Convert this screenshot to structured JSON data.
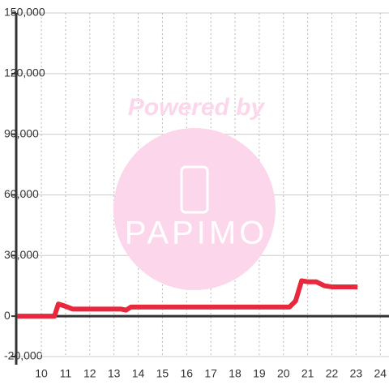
{
  "chart_data": {
    "type": "line",
    "watermark": {
      "top": "Powered by",
      "logo": "PAPIMO"
    },
    "x": [
      9,
      10.54,
      10.7,
      10.97,
      11.3,
      13.3,
      13.5,
      13.7,
      20.25,
      20.5,
      20.75,
      21,
      21.35,
      21.7,
      22,
      23.06
    ],
    "series": [
      {
        "color": "#e8283c",
        "values": [
          0,
          0,
          6000,
          5000,
          3500,
          3500,
          3000,
          4500,
          4500,
          7500,
          17500,
          17000,
          17000,
          15000,
          14500,
          14500
        ]
      }
    ],
    "xlim": [
      8.96,
      24.36
    ],
    "xticks": [
      10,
      11,
      12,
      13,
      14,
      15,
      16,
      17,
      18,
      19,
      20,
      21,
      22,
      23,
      24
    ],
    "ylim": [
      -20000,
      150000
    ],
    "yticks": [
      {
        "value": -20000,
        "label": "-20,000"
      },
      0,
      {
        "value": 30000,
        "label": "30,000"
      },
      {
        "value": 60000,
        "label": "60,000"
      },
      {
        "value": 90000,
        "label": "90,000"
      },
      {
        "value": 120000,
        "label": "120,000"
      },
      {
        "value": 150000,
        "label": "150,000"
      }
    ],
    "grid": true
  }
}
